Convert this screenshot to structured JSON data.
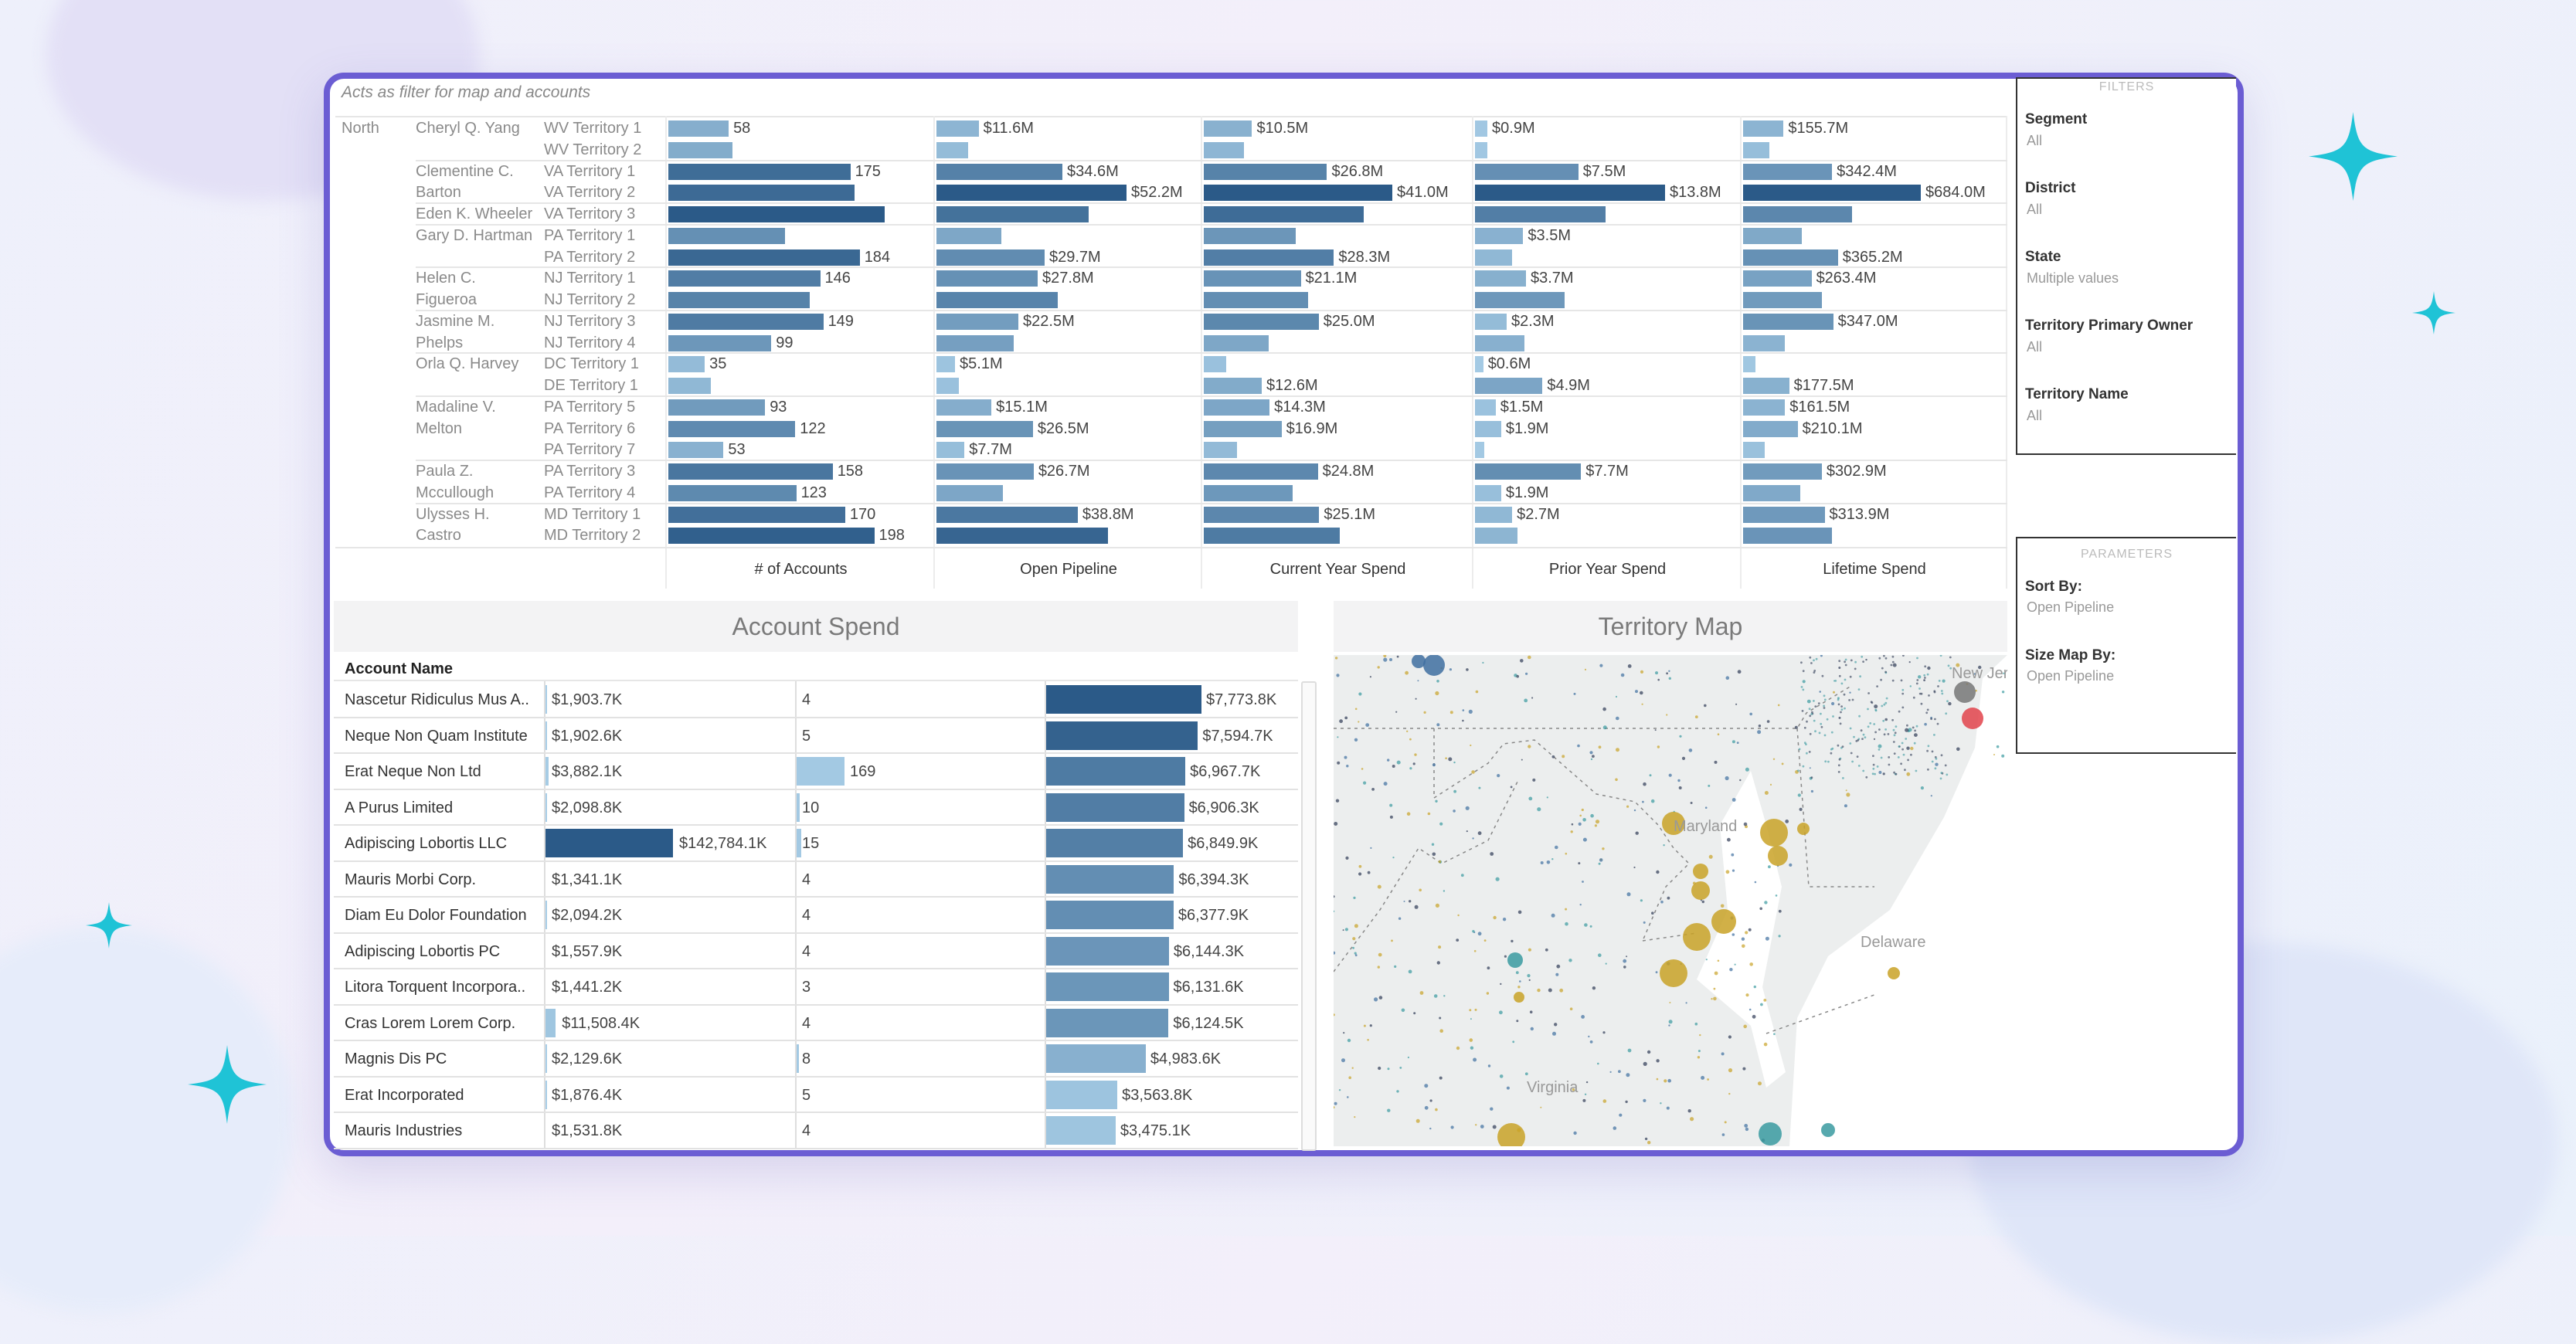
{
  "colors": {
    "accent_border": "#6b5dd3",
    "sparkle": "#1fc3d6",
    "bar_light": "#a9cfe8",
    "bar_dark": "#2b5a88",
    "map_gold": "#c9a227",
    "map_teal": "#3a9aa0",
    "map_blue": "#3f6fa0",
    "map_gray": "#777777",
    "map_red": "#e2434b",
    "map_navy": "#2f3a55"
  },
  "territory_table": {
    "hint": "Acts as filter for map and accounts",
    "region": "North",
    "columns": [
      "# of Accounts",
      "Open Pipeline",
      "Current Year Spend",
      "Prior Year Spend",
      "Lifetime Spend"
    ],
    "groups_start_rows": [
      0,
      2,
      4,
      5,
      7,
      9,
      11,
      13,
      16,
      18
    ],
    "rows": [
      {
        "owner": "Cheryl Q. Yang",
        "territory": "WV Territory 1",
        "values": [
          58,
          11.6,
          10.5,
          0.9,
          155.7
        ],
        "labels": [
          "58",
          "$11.6M",
          "$10.5M",
          "$0.9M",
          "$155.7M"
        ]
      },
      {
        "owner": "",
        "territory": "WV Territory 2",
        "values": [
          62,
          8.6,
          8.7,
          0.9,
          102
        ],
        "labels": [
          "",
          "",
          "",
          "",
          ""
        ]
      },
      {
        "owner": "Clementine C.",
        "territory": "VA Territory 1",
        "values": [
          175,
          34.6,
          26.8,
          7.5,
          342.4
        ],
        "labels": [
          "175",
          "$34.6M",
          "$26.8M",
          "$7.5M",
          "$342.4M"
        ]
      },
      {
        "owner": "Barton",
        "territory": "VA Territory 2",
        "values": [
          179,
          52.2,
          41.0,
          13.8,
          684.0
        ],
        "labels": [
          "",
          "$52.2M",
          "$41.0M",
          "$13.8M",
          "$684.0M"
        ]
      },
      {
        "owner": "Eden K. Wheeler",
        "territory": "VA Territory 3",
        "values": [
          208,
          41.7,
          34.7,
          9.5,
          420
        ],
        "labels": [
          "",
          "",
          "",
          "",
          ""
        ]
      },
      {
        "owner": "Gary D. Hartman",
        "territory": "PA Territory 1",
        "values": [
          112,
          17.9,
          20.0,
          3.5,
          225
        ],
        "labels": [
          "",
          "",
          "",
          "$3.5M",
          ""
        ]
      },
      {
        "owner": "",
        "territory": "PA Territory 2",
        "values": [
          184,
          29.7,
          28.3,
          2.7,
          365.2
        ],
        "labels": [
          "184",
          "$29.7M",
          "$28.3M",
          "",
          "$365.2M"
        ]
      },
      {
        "owner": "Helen C.",
        "territory": "NJ Territory 1",
        "values": [
          146,
          27.8,
          21.1,
          3.7,
          263.4
        ],
        "labels": [
          "146",
          "$27.8M",
          "$21.1M",
          "$3.7M",
          "$263.4M"
        ]
      },
      {
        "owner": "Figueroa",
        "territory": "NJ Territory 2",
        "values": [
          136,
          33.4,
          22.7,
          6.5,
          304
        ],
        "labels": [
          "",
          "",
          "",
          "",
          ""
        ]
      },
      {
        "owner": "Jasmine M.",
        "territory": "NJ Territory 3",
        "values": [
          149,
          22.5,
          25.0,
          2.3,
          347.0
        ],
        "labels": [
          "149",
          "$22.5M",
          "$25.0M",
          "$2.3M",
          "$347.0M"
        ]
      },
      {
        "owner": "Phelps",
        "territory": "NJ Territory 4",
        "values": [
          99,
          21.3,
          14.1,
          3.6,
          161
        ],
        "labels": [
          "99",
          "",
          "",
          "",
          ""
        ]
      },
      {
        "owner": "Orla Q. Harvey",
        "territory": "DC Territory 1",
        "values": [
          35,
          5.1,
          4.9,
          0.6,
          49
        ],
        "labels": [
          "35",
          "$5.1M",
          "",
          "$0.6M",
          ""
        ]
      },
      {
        "owner": "",
        "territory": "DE Territory 1",
        "values": [
          41,
          6.2,
          12.6,
          4.9,
          177.5
        ],
        "labels": [
          "",
          "",
          "$12.6M",
          "$4.9M",
          "$177.5M"
        ]
      },
      {
        "owner": "Madaline V.",
        "territory": "PA Territory 5",
        "values": [
          93,
          15.1,
          14.3,
          1.5,
          161.5
        ],
        "labels": [
          "93",
          "$15.1M",
          "$14.3M",
          "$1.5M",
          "$161.5M"
        ]
      },
      {
        "owner": "Melton",
        "territory": "PA Territory 6",
        "values": [
          122,
          26.5,
          16.9,
          1.9,
          210.1
        ],
        "labels": [
          "122",
          "$26.5M",
          "$16.9M",
          "$1.9M",
          "$210.1M"
        ]
      },
      {
        "owner": "",
        "territory": "PA Territory 7",
        "values": [
          53,
          7.7,
          7.3,
          0.7,
          84
        ],
        "labels": [
          "53",
          "$7.7M",
          "",
          "",
          ""
        ]
      },
      {
        "owner": "Paula Z.",
        "territory": "PA Territory 3",
        "values": [
          158,
          26.7,
          24.8,
          7.7,
          302.9
        ],
        "labels": [
          "158",
          "$26.7M",
          "$24.8M",
          "$7.7M",
          "$302.9M"
        ]
      },
      {
        "owner": "Mccullough",
        "territory": "PA Territory 4",
        "values": [
          123,
          18.2,
          19.4,
          1.9,
          220
        ],
        "labels": [
          "123",
          "",
          "",
          "$1.9M",
          ""
        ]
      },
      {
        "owner": "Ulysses H.",
        "territory": "MD Territory 1",
        "values": [
          170,
          38.8,
          25.1,
          2.7,
          313.9
        ],
        "labels": [
          "170",
          "$38.8M",
          "$25.1M",
          "$2.7M",
          "$313.9M"
        ]
      },
      {
        "owner": "Castro",
        "territory": "MD Territory 2",
        "values": [
          198,
          47.2,
          29.5,
          3.1,
          343
        ],
        "labels": [
          "198",
          "",
          "",
          "",
          ""
        ]
      }
    ]
  },
  "account_spend": {
    "title": "Account Spend",
    "name_header": "Account Name",
    "rows": [
      {
        "name": "Nascetur Ridiculus Mus A..",
        "v1": 1903.7,
        "l1": "$1,903.7K",
        "v2": 4,
        "l2": "4",
        "v3": 7773.8,
        "l3": "$7,773.8K"
      },
      {
        "name": "Neque Non Quam Institute",
        "v1": 1902.6,
        "l1": "$1,902.6K",
        "v2": 5,
        "l2": "5",
        "v3": 7594.7,
        "l3": "$7,594.7K"
      },
      {
        "name": "Erat Neque Non Ltd",
        "v1": 3882.1,
        "l1": "$3,882.1K",
        "v2": 169,
        "l2": "169",
        "v3": 6967.7,
        "l3": "$6,967.7K"
      },
      {
        "name": "A Purus Limited",
        "v1": 2098.8,
        "l1": "$2,098.8K",
        "v2": 10,
        "l2": "10",
        "v3": 6906.3,
        "l3": "$6,906.3K"
      },
      {
        "name": "Adipiscing Lobortis LLC",
        "v1": 142784.1,
        "l1": "$142,784.1K",
        "v2": 15,
        "l2": "15",
        "v3": 6849.9,
        "l3": "$6,849.9K"
      },
      {
        "name": "Mauris Morbi Corp.",
        "v1": 1341.1,
        "l1": "$1,341.1K",
        "v2": 4,
        "l2": "4",
        "v3": 6394.3,
        "l3": "$6,394.3K"
      },
      {
        "name": "Diam Eu Dolor Foundation",
        "v1": 2094.2,
        "l1": "$2,094.2K",
        "v2": 4,
        "l2": "4",
        "v3": 6377.9,
        "l3": "$6,377.9K"
      },
      {
        "name": "Adipiscing Lobortis PC",
        "v1": 1557.9,
        "l1": "$1,557.9K",
        "v2": 4,
        "l2": "4",
        "v3": 6144.3,
        "l3": "$6,144.3K"
      },
      {
        "name": "Litora Torquent Incorpora..",
        "v1": 1441.2,
        "l1": "$1,441.2K",
        "v2": 3,
        "l2": "3",
        "v3": 6131.6,
        "l3": "$6,131.6K"
      },
      {
        "name": "Cras Lorem Lorem Corp.",
        "v1": 11508.4,
        "l1": "$11,508.4K",
        "v2": 4,
        "l2": "4",
        "v3": 6124.5,
        "l3": "$6,124.5K"
      },
      {
        "name": "Magnis Dis PC",
        "v1": 2129.6,
        "l1": "$2,129.6K",
        "v2": 8,
        "l2": "8",
        "v3": 4983.6,
        "l3": "$4,983.6K"
      },
      {
        "name": "Erat Incorporated",
        "v1": 1876.4,
        "l1": "$1,876.4K",
        "v2": 5,
        "l2": "5",
        "v3": 3563.8,
        "l3": "$3,563.8K"
      },
      {
        "name": "Mauris Industries",
        "v1": 1531.8,
        "l1": "$1,531.8K",
        "v2": 4,
        "l2": "4",
        "v3": 3475.1,
        "l3": "$3,475.1K"
      }
    ]
  },
  "territory_map": {
    "title": "Territory Map",
    "labels": {
      "maryland": "Maryland",
      "delaware": "Delaware",
      "virginia": "Virginia",
      "new_jersey": "New Jersey"
    }
  },
  "filters": {
    "title": "FILTERS",
    "items": [
      {
        "label": "Segment",
        "value": "All"
      },
      {
        "label": "District",
        "value": "All"
      },
      {
        "label": "State",
        "value": "Multiple values"
      },
      {
        "label": "Territory Primary Owner",
        "value": "All"
      },
      {
        "label": "Territory Name",
        "value": "All"
      }
    ]
  },
  "parameters": {
    "title": "PARAMETERS",
    "items": [
      {
        "label": "Sort By:",
        "value": "Open Pipeline"
      },
      {
        "label": "Size Map By:",
        "value": "Open Pipeline"
      }
    ]
  }
}
